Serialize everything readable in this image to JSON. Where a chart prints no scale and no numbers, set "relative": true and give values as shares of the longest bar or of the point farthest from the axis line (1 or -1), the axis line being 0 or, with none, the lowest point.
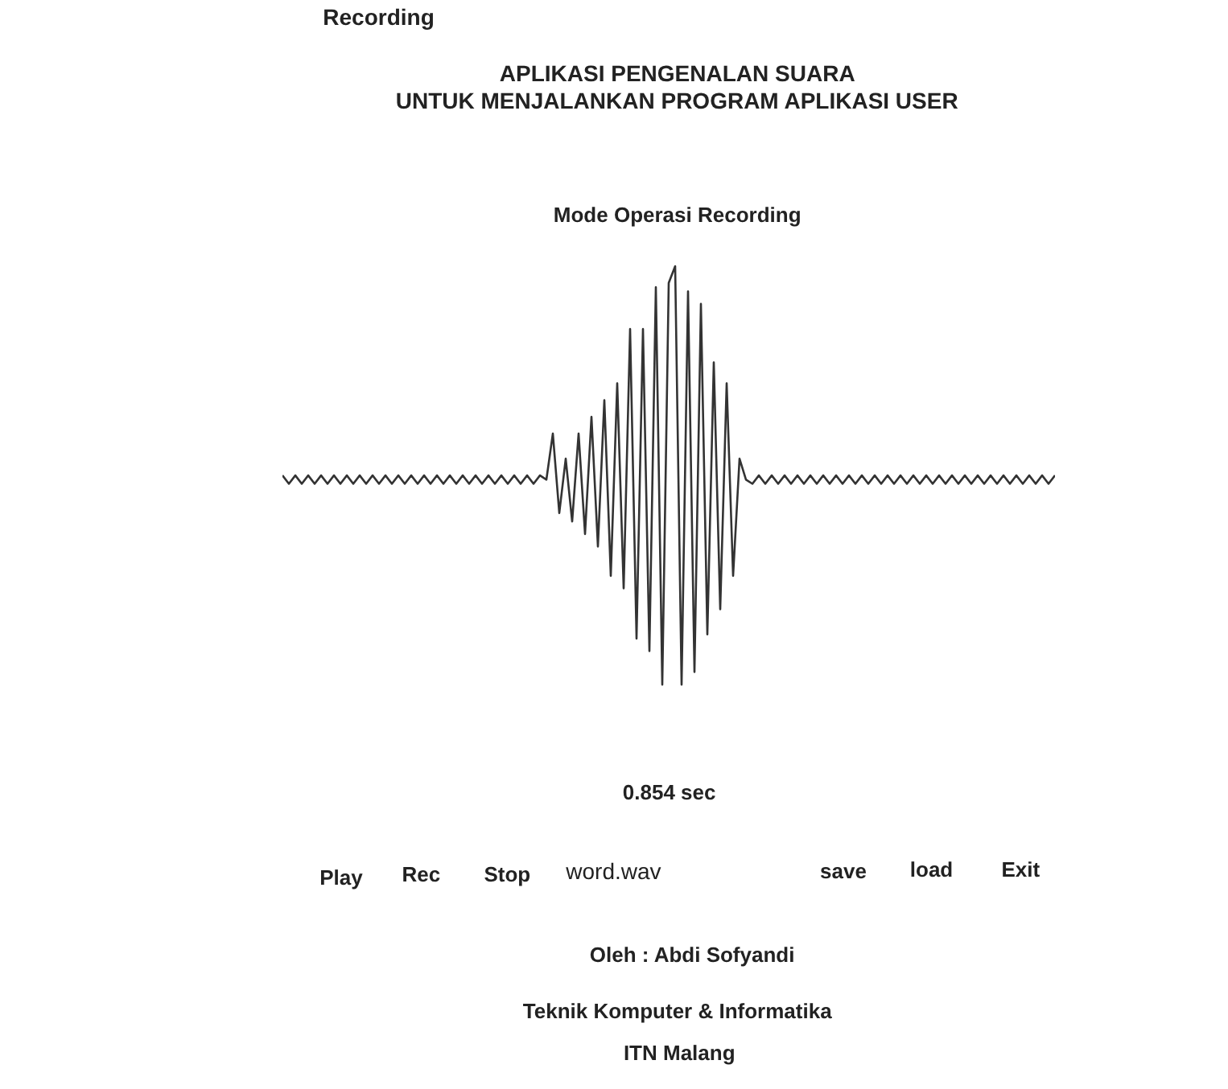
{
  "chart_data": {
    "type": "line",
    "relative": true,
    "title": "APLIKASI PENGENALAN SUARA\nUNTUK MENJALANKAN PROGRAM APLIKASI USER",
    "subtitle": "Mode Operasi Recording",
    "xlabel": "0.854 sec",
    "categories": [
      null,
      null,
      null,
      null,
      null,
      null,
      null,
      null,
      null,
      null,
      null,
      null,
      null,
      null,
      null,
      null,
      null,
      null,
      null,
      null,
      null,
      null,
      null,
      null,
      null,
      null,
      null,
      null,
      null,
      null,
      null,
      null,
      null,
      null,
      null,
      null,
      null,
      null,
      null,
      null,
      null,
      null,
      null,
      null,
      null,
      null,
      null,
      null,
      null,
      null,
      null,
      null,
      null,
      null,
      null,
      null,
      null,
      null,
      null,
      null,
      null,
      null,
      null,
      null,
      null,
      null,
      null,
      null,
      null,
      null,
      null,
      null,
      null,
      null,
      null,
      null,
      null,
      null,
      null,
      null,
      null,
      null,
      null,
      null,
      null,
      null,
      null,
      null,
      null,
      null,
      null,
      null,
      null,
      null,
      null,
      null,
      null,
      null,
      null,
      null,
      null,
      null,
      null,
      null,
      null,
      null,
      null,
      null,
      null,
      null,
      null,
      null,
      null,
      null,
      null,
      null,
      null,
      null,
      null,
      null,
      null
    ],
    "series": [
      {
        "color": "#333333",
        "values": [
          0.5,
          0.48,
          0.5,
          0.48,
          0.5,
          0.48,
          0.5,
          0.48,
          0.5,
          0.48,
          0.5,
          0.48,
          0.5,
          0.48,
          0.5,
          0.48,
          0.5,
          0.48,
          0.5,
          0.48,
          0.5,
          0.48,
          0.5,
          0.48,
          0.5,
          0.48,
          0.5,
          0.48,
          0.5,
          0.48,
          0.5,
          0.48,
          0.5,
          0.48,
          0.5,
          0.48,
          0.5,
          0.48,
          0.5,
          0.48,
          0.5,
          0.49,
          0.6,
          0.41,
          0.54,
          0.39,
          0.6,
          0.36,
          0.64,
          0.33,
          0.68,
          0.26,
          0.72,
          0.23,
          0.85,
          0.11,
          0.85,
          0.08,
          0.95,
          0.0,
          0.96,
          1.0,
          0.0,
          0.94,
          0.03,
          0.91,
          0.12,
          0.77,
          0.18,
          0.72,
          0.26,
          0.54,
          0.49,
          0.48,
          0.5,
          0.48,
          0.5,
          0.48,
          0.5,
          0.48,
          0.5,
          0.48,
          0.5,
          0.48,
          0.5,
          0.48,
          0.5,
          0.48,
          0.5,
          0.48,
          0.5,
          0.48,
          0.5,
          0.48,
          0.5,
          0.48,
          0.5,
          0.48,
          0.5,
          0.48,
          0.5,
          0.48,
          0.5,
          0.48,
          0.5,
          0.48,
          0.5,
          0.48,
          0.5,
          0.48,
          0.5,
          0.48,
          0.5,
          0.48,
          0.5,
          0.48,
          0.5,
          0.48,
          0.5,
          0.48,
          0.5
        ]
      }
    ],
    "annotations": [
      "Recording",
      "Play",
      "Rec",
      "Stop",
      "word.wav",
      "save",
      "load",
      "Exit",
      "Oleh : Abdi Sofyandi",
      "Teknik Komputer & Informatika",
      "ITN Malang"
    ]
  }
}
